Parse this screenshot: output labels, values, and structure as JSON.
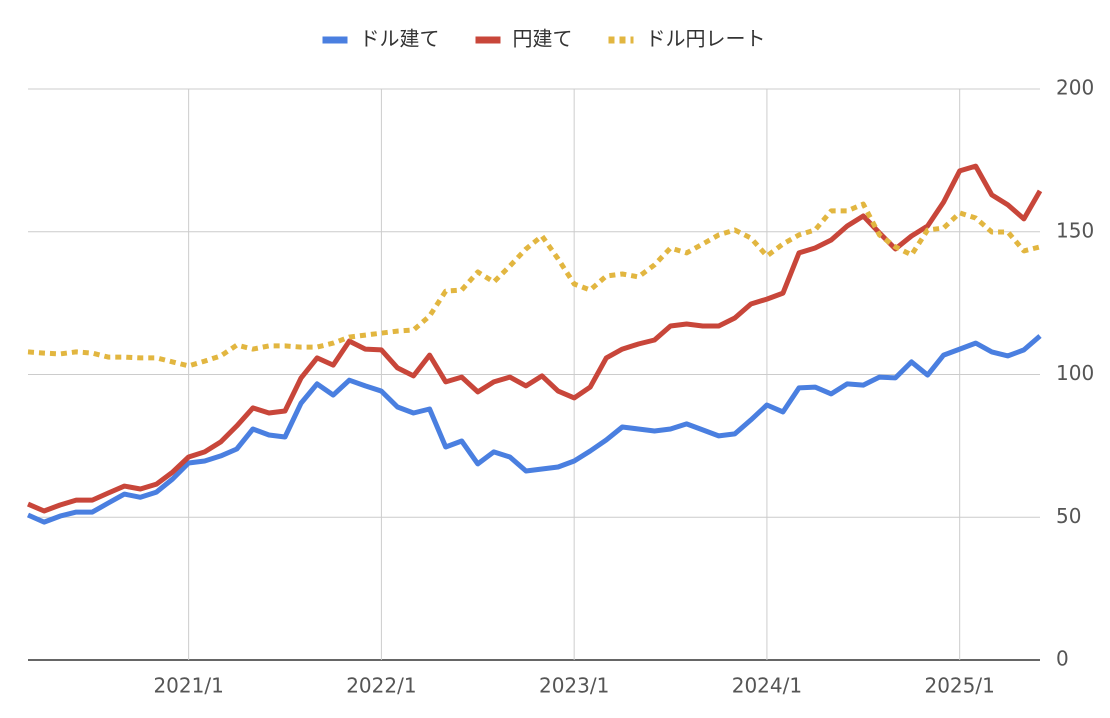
{
  "chart_data": {
    "type": "line",
    "categories": [
      null,
      null,
      null,
      null,
      null,
      null,
      null,
      null,
      null,
      null,
      "2021/1",
      null,
      null,
      null,
      null,
      null,
      null,
      null,
      null,
      null,
      null,
      null,
      "2022/1",
      null,
      null,
      null,
      null,
      null,
      null,
      null,
      null,
      null,
      null,
      null,
      "2023/1",
      null,
      null,
      null,
      null,
      null,
      null,
      null,
      null,
      null,
      null,
      null,
      "2024/1",
      null,
      null,
      null,
      null,
      null,
      null,
      null,
      null,
      null,
      null,
      null,
      "2025/1",
      null,
      null,
      null,
      null,
      null
    ],
    "series": [
      {
        "name": "ドル建て",
        "color": "#4a7fe0",
        "dashed": false,
        "values": [
          50.8,
          48.3,
          50.4,
          51.8,
          51.8,
          55,
          58.1,
          57,
          58.8,
          63.4,
          69,
          69.7,
          71.5,
          73.9,
          80.9,
          78.8,
          78.1,
          90,
          96.7,
          92.8,
          98,
          96,
          94.2,
          88.6,
          86.5,
          87.9,
          74.6,
          76.7,
          68.7,
          72.9,
          71.1,
          66.2,
          66.9,
          67.6,
          69.7,
          73.2,
          77.1,
          81.6,
          80.9,
          80.2,
          80.9,
          82.7,
          80.6,
          78.5,
          79.2,
          84.1,
          89.3,
          86.9,
          95.3,
          95.6,
          93.2,
          96.7,
          96.3,
          99.1,
          98.8,
          104.4,
          99.8,
          106.8,
          108.9,
          111,
          107.9,
          106.5,
          108.6,
          113.5
        ]
      },
      {
        "name": "円建て",
        "color": "#c8463a",
        "dashed": false,
        "values": [
          54.6,
          52.2,
          54.3,
          56,
          56,
          58.5,
          60.9,
          59.9,
          61.6,
          65.8,
          71.1,
          72.9,
          76.4,
          82,
          88.3,
          86.5,
          87.2,
          98.8,
          105.8,
          103.3,
          111.7,
          108.9,
          108.6,
          102.3,
          99.5,
          106.8,
          97.4,
          99.1,
          93.9,
          97.4,
          99.1,
          96,
          99.5,
          94.2,
          91.8,
          95.6,
          105.8,
          108.9,
          110.7,
          112.1,
          117,
          117.7,
          117,
          117,
          119.8,
          124.7,
          126.4,
          128.5,
          142.6,
          144.3,
          147.1,
          152,
          155.5,
          149.6,
          144,
          148.5,
          152,
          160.4,
          171.3,
          173,
          162.9,
          159.4,
          154.5,
          164.3
        ]
      },
      {
        "name": "ドル円レート",
        "color": "#e2b640",
        "dashed": true,
        "values": [
          107.9,
          107.5,
          107.2,
          107.9,
          107.5,
          106.1,
          106.1,
          105.8,
          105.8,
          104.4,
          103,
          104.7,
          106.5,
          110.3,
          108.9,
          110,
          110,
          109.6,
          109.6,
          111,
          113.1,
          113.8,
          114.5,
          115.2,
          115.6,
          120.5,
          129.2,
          129.6,
          135.9,
          132.4,
          138,
          144,
          148.5,
          140.5,
          131.7,
          129.6,
          134.5,
          135.2,
          134.2,
          138.4,
          144.3,
          142.6,
          145.7,
          148.9,
          150.6,
          147.8,
          141.5,
          145.7,
          148.9,
          150.6,
          157.3,
          157.3,
          159.7,
          148.9,
          144.7,
          141.9,
          150.6,
          151.3,
          156.6,
          154.8,
          149.9,
          149.9,
          143.3,
          144.7
        ]
      }
    ],
    "ylim": [
      0,
      200
    ],
    "yticks": [
      0,
      50,
      100,
      150,
      200
    ],
    "grid": true,
    "legend": "top"
  }
}
